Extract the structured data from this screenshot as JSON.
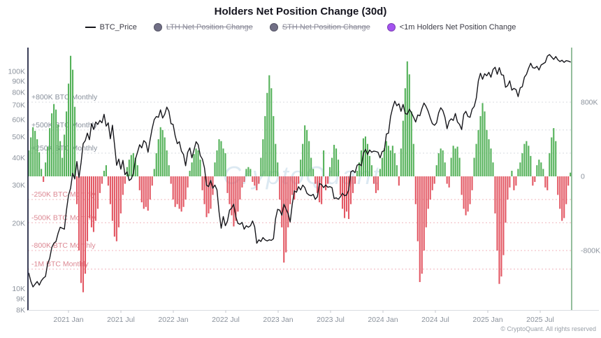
{
  "title": "Holders Net Position Change (30d)",
  "watermark": "CryptoQuant",
  "copyright": "© CryptoQuant. All rights reserved",
  "legend": [
    {
      "label": "BTC_Price",
      "marker": "line",
      "color": "#17171c",
      "struck": false
    },
    {
      "label": "LTH Net Position Change",
      "marker": "dot",
      "color": "#716f86",
      "struck": true
    },
    {
      "label": "STH Net Position Change",
      "marker": "dot",
      "color": "#716f86",
      "struck": true
    },
    {
      "label": "<1m Holders Net Position Change",
      "marker": "dot",
      "color": "#a453f0",
      "struck": false
    }
  ],
  "colors": {
    "positive_bar": "#55b25a",
    "negative_bar": "#e35864",
    "price_line": "#17171c",
    "left_spine": "#3b3e58",
    "right_spine": "#71a87c",
    "bottom_axis": "#d9dce1",
    "grid_positive": "#d8dbe0",
    "grid_negative": "#f0b6bd",
    "label_positive": "#878f9b",
    "label_negative": "#dc8893",
    "tick_label": "#8b929c",
    "watermark": "#c5dcea"
  },
  "left_axis": {
    "unit": "BTC price USD (log)",
    "tick_labels": [
      "8K",
      "9K",
      "10K",
      "20K",
      "30K",
      "40K",
      "50K",
      "60K",
      "70K",
      "80K",
      "90K",
      "100K"
    ],
    "tick_values_k": [
      8,
      9,
      10,
      20,
      30,
      40,
      50,
      60,
      70,
      80,
      90,
      100
    ]
  },
  "right_axis": {
    "unit": "Net position change BTC",
    "tick_labels": [
      "800K",
      "0",
      "-800K"
    ],
    "tick_values_k": [
      800,
      0,
      -800
    ]
  },
  "x_axis": {
    "tick_labels": [
      "2021 Jan",
      "2021 Jul",
      "2022 Jan",
      "2022 Jul",
      "2023 Jan",
      "2023 Jul",
      "2024 Jan",
      "2024 Jul",
      "2025 Jan",
      "2025 Jul"
    ]
  },
  "ref_lines": [
    {
      "label": "+800K BTC Monthly",
      "value_k": 800,
      "sign": "pos"
    },
    {
      "label": "+500K BTC Monthly",
      "value_k": 500,
      "sign": "pos"
    },
    {
      "label": "+250K BTC Monthly",
      "value_k": 250,
      "sign": "pos"
    },
    {
      "label": "-250K BTC Monthly",
      "value_k": -250,
      "sign": "neg"
    },
    {
      "label": "-500K BTC Monthly",
      "value_k": -500,
      "sign": "neg"
    },
    {
      "label": "-800K BTC Monthly",
      "value_k": -800,
      "sign": "neg"
    },
    {
      "label": "-1M BTC Monthly",
      "value_k": -1000,
      "sign": "neg"
    }
  ],
  "chart_data": {
    "type": "bar",
    "x_start": "2020-08",
    "x_end": "2025-10",
    "x_step": "weekly (approx.)",
    "left_ylim_usd": [
      8000,
      122000
    ],
    "left_scale": "log",
    "right_ylim_btc": [
      -1450000,
      1450000
    ],
    "grid": "dashed reference lines only",
    "legend_position": "top center",
    "series": [
      {
        "name": "<1m Holders Net Position Change",
        "type": "bar",
        "unit": "thousand BTC per month",
        "values": [
          280,
          420,
          530,
          490,
          400,
          260,
          80,
          -60,
          150,
          320,
          520,
          680,
          780,
          720,
          560,
          380,
          200,
          450,
          700,
          1000,
          1300,
          1150,
          750,
          -300,
          -800,
          -1150,
          -1250,
          -1050,
          -700,
          -450,
          -550,
          -600,
          -480,
          -350,
          -180,
          -80,
          60,
          120,
          -100,
          -300,
          -480,
          -650,
          -700,
          -550,
          -400,
          -200,
          -80,
          100,
          180,
          230,
          250,
          200,
          120,
          -150,
          -280,
          -350,
          -330,
          -370,
          -250,
          -100,
          80,
          250,
          400,
          530,
          500,
          420,
          280,
          120,
          -80,
          -250,
          -330,
          -300,
          -350,
          -380,
          -330,
          -250,
          -120,
          60,
          150,
          240,
          300,
          280,
          180,
          -150,
          -300,
          -440,
          -400,
          -350,
          -200,
          150,
          280,
          400,
          380,
          300,
          250,
          -180,
          -300,
          -420,
          -540,
          -480,
          -380,
          -250,
          -120,
          -60,
          80,
          100,
          80,
          -60,
          -100,
          -150,
          -80,
          200,
          400,
          650,
          900,
          1090,
          950,
          650,
          350,
          150,
          -250,
          -550,
          -930,
          -820,
          -550,
          -300,
          -200,
          -250,
          -150,
          -80,
          180,
          350,
          550,
          500,
          380,
          200,
          80,
          -80,
          -180,
          -280,
          -300,
          280,
          -150,
          -80,
          100,
          200,
          340,
          300,
          180,
          -200,
          -350,
          -450,
          -380,
          -460,
          -300,
          -180,
          -80,
          60,
          150,
          280,
          410,
          430,
          350,
          220,
          120,
          -80,
          -180,
          -150,
          80,
          200,
          300,
          380,
          330,
          280,
          330,
          250,
          120,
          -100,
          300,
          600,
          950,
          1240,
          1100,
          700,
          350,
          -300,
          -700,
          -1140,
          -1050,
          -800,
          -550,
          -350,
          -250,
          -150,
          -80,
          120,
          250,
          300,
          280,
          150,
          -80,
          -120,
          200,
          330,
          300,
          320,
          200,
          -200,
          -350,
          -420,
          -380,
          -300,
          -150,
          200,
          350,
          500,
          650,
          790,
          700,
          500,
          400,
          300,
          150,
          -400,
          -800,
          -1160,
          -1080,
          -850,
          -500,
          -250,
          -120,
          60,
          -150,
          -100,
          80,
          150,
          250,
          350,
          380,
          330,
          220,
          -100,
          -60,
          120,
          180,
          150,
          80,
          -120,
          -150,
          250,
          420,
          520,
          380,
          -200,
          -350,
          -480,
          -450,
          -300,
          -100,
          40
        ]
      },
      {
        "name": "BTC_Price",
        "type": "line",
        "unit": "thousand USD",
        "values": [
          11.8,
          10.8,
          10.2,
          10.5,
          10.8,
          10.4,
          10.9,
          11.2,
          11.4,
          13.0,
          13.8,
          15.5,
          16.2,
          16.5,
          18.0,
          19.2,
          19.0,
          18.8,
          23.0,
          27.0,
          29.0,
          34.0,
          32.0,
          38.5,
          32.5,
          38.0,
          46.5,
          48.0,
          52.0,
          48.5,
          57.5,
          54.0,
          58.5,
          57.0,
          59.5,
          58.0,
          63.5,
          56.0,
          58.0,
          49.0,
          56.5,
          46.0,
          37.0,
          39.5,
          35.5,
          39.0,
          33.5,
          34.5,
          31.5,
          32.0,
          34.0,
          39.5,
          42.5,
          46.0,
          44.5,
          48.0,
          47.0,
          42.5,
          48.5,
          54.5,
          60.0,
          62.0,
          61.5,
          66.5,
          61.0,
          63.5,
          68.5,
          65.5,
          57.5,
          57.0,
          50.5,
          46.5,
          47.5,
          43.0,
          41.5,
          36.8,
          42.5,
          44.5,
          40.0,
          43.5,
          47.5,
          46.0,
          41.0,
          39.5,
          36.0,
          30.0,
          29.5,
          31.5,
          29.0,
          30.0,
          28.5,
          22.5,
          19.0,
          21.5,
          19.5,
          20.5,
          23.0,
          23.5,
          24.5,
          21.5,
          20.0,
          19.8,
          20.2,
          18.8,
          19.5,
          19.2,
          19.5,
          20.5,
          19.3,
          16.2,
          16.8,
          16.5,
          17.2,
          16.8,
          16.6,
          16.8,
          16.7,
          17.0,
          21.0,
          23.2,
          23.0,
          21.8,
          24.5,
          23.3,
          22.2,
          20.3,
          24.5,
          28.2,
          27.8,
          29.5,
          28.5,
          30.0,
          29.2,
          27.5,
          27.0,
          26.8,
          27.2,
          25.8,
          26.5,
          30.5,
          30.2,
          29.2,
          30.0,
          29.3,
          29.5,
          29.2,
          26.0,
          26.2,
          25.8,
          26.5,
          27.5,
          26.8,
          27.0,
          28.5,
          34.5,
          35.0,
          34.2,
          37.0,
          37.5,
          36.8,
          42.0,
          43.8,
          41.5,
          43.5,
          42.5,
          43.0,
          42.8,
          42.5,
          40.0,
          42.8,
          43.2,
          51.5,
          52.0,
          62.0,
          68.0,
          73.0,
          69.5,
          71.0,
          65.5,
          70.5,
          64.0,
          63.5,
          67.0,
          64.5,
          61.5,
          58.5,
          63.0,
          62.5,
          67.5,
          71.5,
          69.0,
          65.5,
          61.0,
          57.5,
          56.5,
          58.0,
          64.5,
          68.0,
          66.0,
          61.5,
          54.5,
          59.0,
          60.5,
          59.5,
          64.0,
          58.5,
          57.0,
          54.0,
          63.5,
          65.5,
          62.0,
          61.5,
          67.0,
          69.0,
          75.5,
          90.5,
          98.0,
          92.0,
          97.5,
          95.5,
          99.0,
          94.0,
          102.0,
          104.5,
          97.0,
          104.0,
          96.5,
          96.0,
          84.5,
          86.0,
          90.5,
          82.0,
          83.5,
          82.5,
          76.5,
          84.0,
          85.0,
          94.0,
          97.0,
          103.5,
          109.0,
          104.0,
          103.5,
          105.5,
          101.5,
          107.0,
          108.5,
          110.0,
          117.5,
          119.5,
          116.5,
          113.5,
          117.0,
          113.0,
          111.0,
          112.5,
          110.0,
          112.0,
          111.5,
          110.5
        ]
      }
    ]
  }
}
